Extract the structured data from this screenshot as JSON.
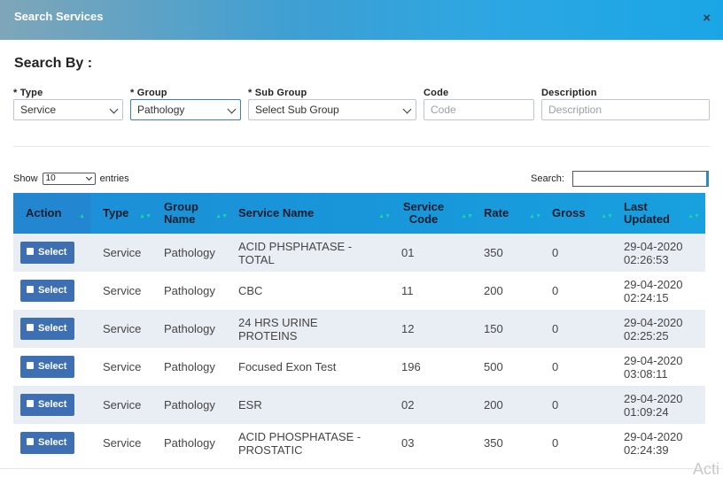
{
  "header": {
    "title": "Search Services",
    "close_glyph": "×"
  },
  "search_by_label": "Search By :",
  "fields": {
    "type": {
      "label": "* Type",
      "value": "Service"
    },
    "group": {
      "label": "* Group",
      "value": "Pathology"
    },
    "sub_group": {
      "label": "* Sub Group",
      "value": "Select Sub Group"
    },
    "code": {
      "label": "Code",
      "placeholder": "Code"
    },
    "description": {
      "label": "Description",
      "placeholder": "Description"
    }
  },
  "table_controls": {
    "show_label": "Show",
    "entries_value": "10",
    "entries_label": "entries",
    "search_label": "Search:"
  },
  "table": {
    "headers": [
      "Action",
      "Type",
      "Group Name",
      "Service Name",
      "Service Code",
      "Rate",
      "Gross",
      "Last Updated"
    ],
    "select_label": "Select",
    "rows": [
      {
        "type": "Service",
        "group": "Pathology",
        "name": "ACID PHSPHATASE - TOTAL",
        "code": "01",
        "rate": "350",
        "gross": "0",
        "date": "29-04-2020",
        "time": "02:26:53"
      },
      {
        "type": "Service",
        "group": "Pathology",
        "name": "CBC",
        "code": "11",
        "rate": "200",
        "gross": "0",
        "date": "29-04-2020",
        "time": "02:24:15"
      },
      {
        "type": "Service",
        "group": "Pathology",
        "name": "24 HRS URINE PROTEINS",
        "code": "12",
        "rate": "150",
        "gross": "0",
        "date": "29-04-2020",
        "time": "02:25:25"
      },
      {
        "type": "Service",
        "group": "Pathology",
        "name": "Focused Exon Test",
        "code": "196",
        "rate": "500",
        "gross": "0",
        "date": "29-04-2020",
        "time": "03:08:11"
      },
      {
        "type": "Service",
        "group": "Pathology",
        "name": "ESR",
        "code": "02",
        "rate": "200",
        "gross": "0",
        "date": "29-04-2020",
        "time": "01:09:24"
      },
      {
        "type": "Service",
        "group": "Pathology",
        "name": "ACID PHOSPHATASE - PROSTATIC",
        "code": "03",
        "rate": "350",
        "gross": "0",
        "date": "29-04-2020",
        "time": "02:24:39"
      }
    ]
  },
  "watermark": "Acti"
}
